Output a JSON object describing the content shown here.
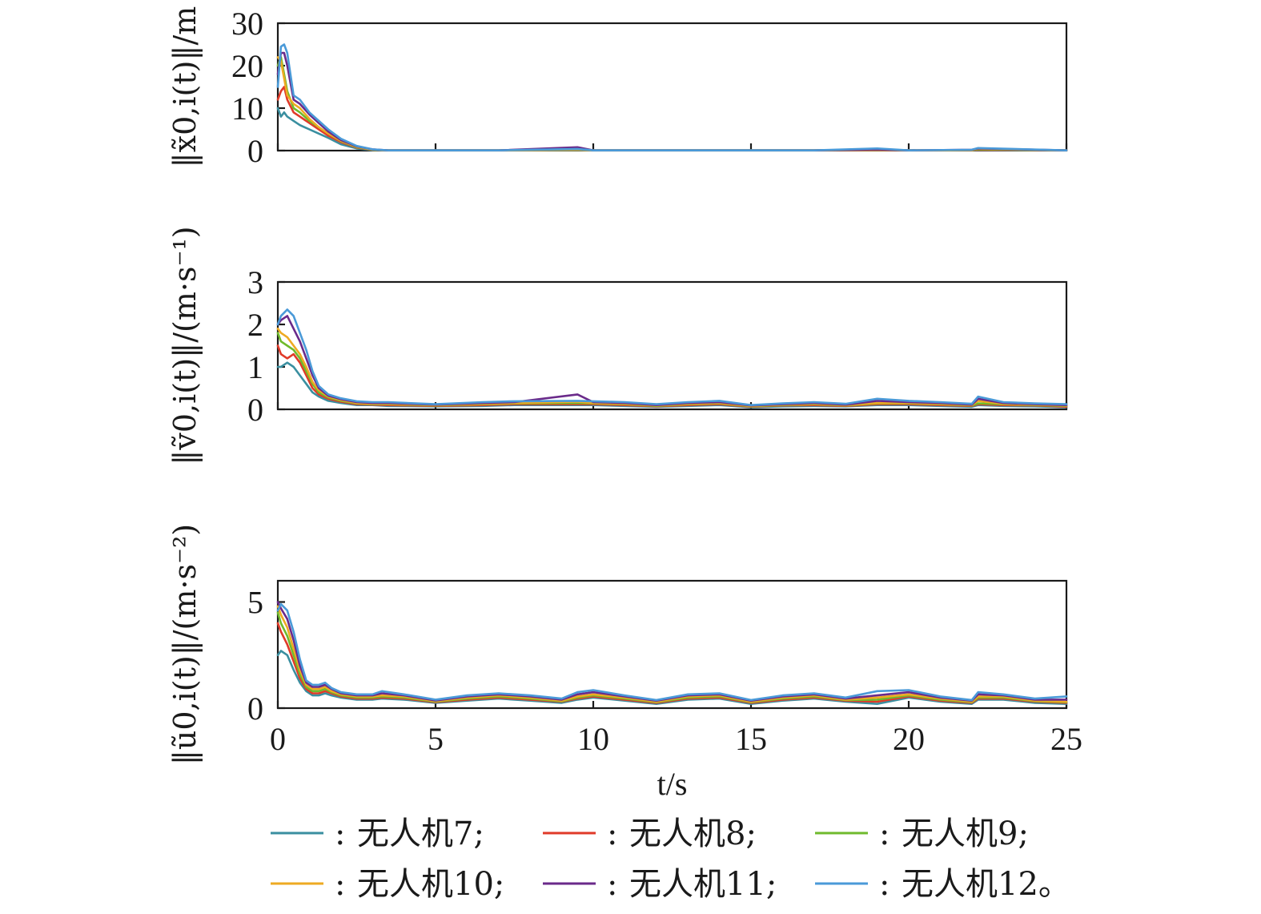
{
  "chart_data": [
    {
      "type": "line",
      "ylabel": "‖x̃0,i(t)‖/m",
      "xlim": [
        0,
        25
      ],
      "ylim": [
        0,
        30
      ],
      "xticks": [
        0,
        5,
        10,
        15,
        20,
        25
      ],
      "yticks": [
        0,
        10,
        20,
        30
      ],
      "x": [
        0,
        0.1,
        0.2,
        0.3,
        0.5,
        0.7,
        1.0,
        1.3,
        1.6,
        2.0,
        2.5,
        3.0,
        3.5,
        5,
        7,
        9.5,
        10,
        12,
        15,
        17,
        19,
        20,
        22,
        22.2,
        25
      ],
      "series": [
        {
          "name": "无人机7",
          "values": [
            10,
            8,
            9,
            8,
            7,
            6,
            5,
            4,
            3,
            1.5,
            0.5,
            0.1,
            0.05,
            0.05,
            0.05,
            0.1,
            0.05,
            0.05,
            0.05,
            0.05,
            0.1,
            0.05,
            0.1,
            0.1,
            0.05
          ]
        },
        {
          "name": "无人机8",
          "values": [
            12,
            14,
            15,
            12,
            9,
            8,
            6.5,
            5,
            3.5,
            2,
            0.7,
            0.2,
            0.05,
            0.05,
            0.05,
            0.2,
            0.05,
            0.05,
            0.05,
            0.05,
            0.1,
            0.05,
            0.1,
            0.2,
            0.05
          ]
        },
        {
          "name": "无人机9",
          "values": [
            20,
            22,
            18,
            14,
            10,
            9,
            7,
            5.5,
            4,
            2.2,
            0.8,
            0.2,
            0.05,
            0.05,
            0.05,
            0.2,
            0.05,
            0.05,
            0.05,
            0.05,
            0.2,
            0.05,
            0.1,
            0.3,
            0.05
          ]
        },
        {
          "name": "无人机10",
          "values": [
            22,
            21,
            17,
            13,
            11,
            10,
            7.5,
            5.5,
            4,
            2.3,
            0.9,
            0.2,
            0.05,
            0.05,
            0.05,
            0.2,
            0.05,
            0.05,
            0.05,
            0.05,
            0.2,
            0.05,
            0.1,
            0.4,
            0.05
          ]
        },
        {
          "name": "无人机11",
          "values": [
            18,
            23,
            23,
            20,
            12,
            11,
            8.5,
            6.5,
            4.5,
            2.5,
            1.0,
            0.3,
            0.05,
            0.05,
            0.05,
            0.8,
            0.05,
            0.05,
            0.05,
            0.05,
            0.3,
            0.05,
            0.2,
            0.5,
            0.05
          ]
        },
        {
          "name": "无人机12",
          "values": [
            15,
            24.5,
            25,
            23,
            13,
            12,
            9,
            7,
            5,
            2.8,
            1.1,
            0.3,
            0.05,
            0.05,
            0.05,
            0.4,
            0.05,
            0.05,
            0.05,
            0.05,
            0.5,
            0.05,
            0.2,
            0.6,
            0.05
          ]
        }
      ]
    },
    {
      "type": "line",
      "ylabel": "‖ṽ0,i(t)‖/(m·s⁻¹)",
      "xlim": [
        0,
        25
      ],
      "ylim": [
        0,
        3
      ],
      "xticks": [
        0,
        5,
        10,
        15,
        20,
        25
      ],
      "yticks": [
        0,
        1,
        2,
        3
      ],
      "x": [
        0,
        0.1,
        0.3,
        0.5,
        0.7,
        0.9,
        1.1,
        1.3,
        1.6,
        2.0,
        2.5,
        3.0,
        3.5,
        5,
        6.5,
        7.5,
        9.5,
        10,
        11,
        12,
        13,
        14,
        15,
        16,
        17,
        18,
        19,
        20,
        21,
        22,
        22.2,
        23,
        24,
        25
      ],
      "series": [
        {
          "name": "无人机7",
          "values": [
            1.0,
            1.0,
            1.1,
            1.0,
            0.8,
            0.6,
            0.4,
            0.3,
            0.2,
            0.15,
            0.1,
            0.1,
            0.08,
            0.07,
            0.08,
            0.1,
            0.1,
            0.1,
            0.08,
            0.06,
            0.08,
            0.1,
            0.05,
            0.07,
            0.08,
            0.07,
            0.1,
            0.1,
            0.08,
            0.06,
            0.1,
            0.08,
            0.07,
            0.05
          ]
        },
        {
          "name": "无人机8",
          "values": [
            1.5,
            1.3,
            1.2,
            1.3,
            1.1,
            0.8,
            0.5,
            0.35,
            0.25,
            0.18,
            0.12,
            0.11,
            0.1,
            0.08,
            0.1,
            0.12,
            0.12,
            0.12,
            0.1,
            0.07,
            0.1,
            0.12,
            0.06,
            0.09,
            0.1,
            0.08,
            0.12,
            0.12,
            0.1,
            0.08,
            0.12,
            0.1,
            0.09,
            0.06
          ]
        },
        {
          "name": "无人机9",
          "values": [
            1.8,
            1.6,
            1.5,
            1.4,
            1.2,
            0.9,
            0.6,
            0.4,
            0.28,
            0.2,
            0.14,
            0.12,
            0.12,
            0.09,
            0.12,
            0.14,
            0.15,
            0.14,
            0.12,
            0.08,
            0.12,
            0.14,
            0.07,
            0.1,
            0.12,
            0.09,
            0.14,
            0.14,
            0.12,
            0.09,
            0.14,
            0.12,
            0.1,
            0.08
          ]
        },
        {
          "name": "无人机10",
          "values": [
            1.9,
            1.8,
            1.7,
            1.5,
            1.3,
            1.0,
            0.65,
            0.45,
            0.3,
            0.22,
            0.15,
            0.13,
            0.13,
            0.1,
            0.13,
            0.15,
            0.18,
            0.15,
            0.13,
            0.09,
            0.13,
            0.15,
            0.08,
            0.11,
            0.13,
            0.1,
            0.15,
            0.15,
            0.13,
            0.1,
            0.2,
            0.13,
            0.11,
            0.09
          ]
        },
        {
          "name": "无人机11",
          "values": [
            2.0,
            2.1,
            2.2,
            1.9,
            1.6,
            1.2,
            0.8,
            0.5,
            0.32,
            0.24,
            0.17,
            0.15,
            0.15,
            0.11,
            0.15,
            0.17,
            0.35,
            0.17,
            0.15,
            0.1,
            0.15,
            0.17,
            0.09,
            0.12,
            0.15,
            0.11,
            0.2,
            0.17,
            0.15,
            0.11,
            0.25,
            0.15,
            0.12,
            0.1
          ]
        },
        {
          "name": "无人机12",
          "values": [
            2.0,
            2.2,
            2.35,
            2.2,
            1.8,
            1.4,
            0.9,
            0.55,
            0.35,
            0.26,
            0.19,
            0.17,
            0.17,
            0.12,
            0.17,
            0.19,
            0.2,
            0.19,
            0.17,
            0.12,
            0.17,
            0.2,
            0.1,
            0.14,
            0.17,
            0.13,
            0.25,
            0.2,
            0.17,
            0.13,
            0.3,
            0.17,
            0.14,
            0.12
          ]
        }
      ]
    },
    {
      "type": "line",
      "ylabel": "‖ũ0,i(t)‖/(m·s⁻²)",
      "xlabel": "t/s",
      "xlim": [
        0,
        25
      ],
      "ylim": [
        0,
        6
      ],
      "xticks": [
        0,
        5,
        10,
        15,
        20,
        25
      ],
      "yticks": [
        0,
        5
      ],
      "yticklabels": [
        "0",
        "5"
      ],
      "x": [
        0,
        0.1,
        0.3,
        0.5,
        0.7,
        0.9,
        1.1,
        1.3,
        1.5,
        1.7,
        2.0,
        2.5,
        3.0,
        3.3,
        4,
        5,
        6,
        7,
        8,
        9,
        9.5,
        10,
        11,
        12,
        13,
        14,
        15,
        16,
        17,
        18,
        19,
        20,
        21,
        22,
        22.2,
        23,
        24,
        25
      ],
      "series": [
        {
          "name": "无人机7",
          "values": [
            2.5,
            2.7,
            2.5,
            1.8,
            1.2,
            0.8,
            0.6,
            0.6,
            0.7,
            0.6,
            0.5,
            0.4,
            0.4,
            0.45,
            0.4,
            0.25,
            0.35,
            0.45,
            0.35,
            0.25,
            0.4,
            0.5,
            0.35,
            0.2,
            0.4,
            0.45,
            0.2,
            0.35,
            0.45,
            0.3,
            0.2,
            0.5,
            0.3,
            0.2,
            0.4,
            0.4,
            0.25,
            0.2
          ]
        },
        {
          "name": "无人机8",
          "values": [
            4.0,
            3.6,
            3.0,
            2.2,
            1.4,
            0.9,
            0.7,
            0.7,
            0.8,
            0.7,
            0.55,
            0.45,
            0.45,
            0.5,
            0.45,
            0.28,
            0.4,
            0.5,
            0.4,
            0.3,
            0.45,
            0.55,
            0.4,
            0.25,
            0.45,
            0.5,
            0.25,
            0.4,
            0.5,
            0.35,
            0.3,
            0.55,
            0.35,
            0.25,
            0.45,
            0.45,
            0.3,
            0.25
          ]
        },
        {
          "name": "无人机9",
          "values": [
            4.5,
            4.0,
            3.4,
            2.5,
            1.6,
            1.0,
            0.8,
            0.8,
            0.9,
            0.75,
            0.6,
            0.5,
            0.5,
            0.55,
            0.5,
            0.3,
            0.45,
            0.55,
            0.45,
            0.32,
            0.5,
            0.6,
            0.45,
            0.28,
            0.5,
            0.55,
            0.28,
            0.45,
            0.55,
            0.38,
            0.4,
            0.6,
            0.4,
            0.28,
            0.5,
            0.5,
            0.33,
            0.28
          ]
        },
        {
          "name": "无人机10",
          "values": [
            4.8,
            4.4,
            3.8,
            2.8,
            1.8,
            1.1,
            0.9,
            0.9,
            1.0,
            0.8,
            0.65,
            0.55,
            0.55,
            0.6,
            0.55,
            0.33,
            0.5,
            0.6,
            0.5,
            0.35,
            0.55,
            0.65,
            0.5,
            0.3,
            0.55,
            0.6,
            0.3,
            0.5,
            0.6,
            0.4,
            0.5,
            0.65,
            0.45,
            0.3,
            0.55,
            0.55,
            0.35,
            0.3
          ]
        },
        {
          "name": "无人机11",
          "values": [
            5.0,
            4.7,
            4.2,
            3.2,
            2.0,
            1.2,
            1.0,
            1.0,
            1.1,
            0.9,
            0.7,
            0.6,
            0.6,
            0.7,
            0.6,
            0.36,
            0.55,
            0.65,
            0.55,
            0.4,
            0.65,
            0.75,
            0.55,
            0.35,
            0.6,
            0.65,
            0.35,
            0.55,
            0.65,
            0.45,
            0.6,
            0.75,
            0.5,
            0.35,
            0.65,
            0.6,
            0.4,
            0.4
          ]
        },
        {
          "name": "无人机12",
          "values": [
            4.6,
            4.9,
            4.6,
            3.6,
            2.3,
            1.3,
            1.1,
            1.1,
            1.2,
            0.95,
            0.75,
            0.65,
            0.65,
            0.8,
            0.65,
            0.4,
            0.6,
            0.7,
            0.6,
            0.45,
            0.75,
            0.85,
            0.6,
            0.38,
            0.65,
            0.7,
            0.38,
            0.6,
            0.7,
            0.5,
            0.8,
            0.85,
            0.55,
            0.38,
            0.75,
            0.65,
            0.45,
            0.55
          ]
        }
      ]
    }
  ],
  "legend": {
    "separator": ": ",
    "items": [
      {
        "label": "无人机7;",
        "color": "#3a8fa0"
      },
      {
        "label": "无人机8;",
        "color": "#e03a28"
      },
      {
        "label": "无人机9;",
        "color": "#6fba2c"
      },
      {
        "label": "无人机10;",
        "color": "#eeaa22"
      },
      {
        "label": "无人机11;",
        "color": "#6a2a8a"
      },
      {
        "label": "无人机12。",
        "color": "#4a9ad8"
      }
    ]
  }
}
